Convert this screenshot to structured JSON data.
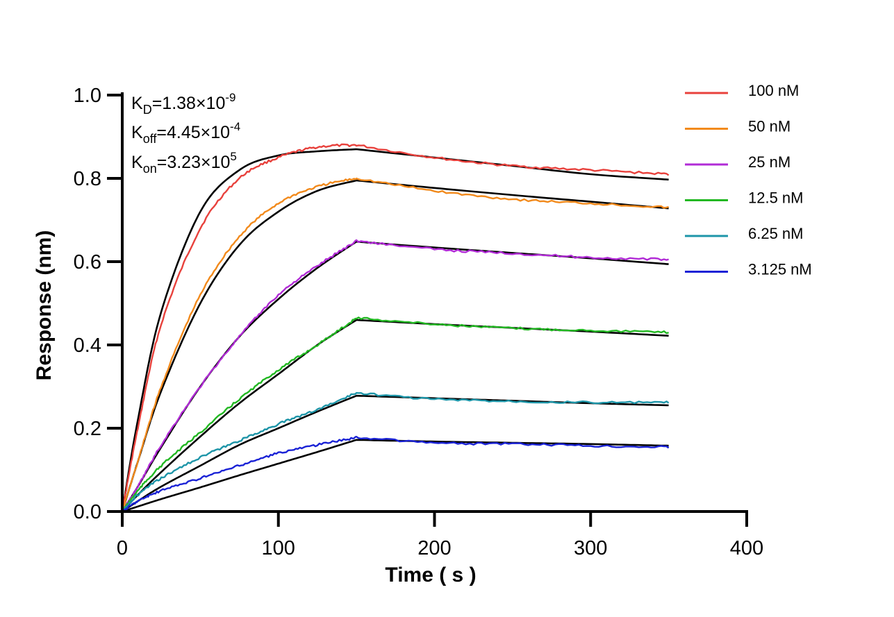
{
  "chart_data": {
    "type": "line",
    "title": "",
    "xlabel": "Time ( s )",
    "ylabel": "Response (nm)",
    "xlim": [
      0,
      400
    ],
    "ylim": [
      0,
      1.0
    ],
    "x_ticks": [
      "0",
      "100",
      "200",
      "300",
      "400"
    ],
    "y_ticks": [
      "0.0",
      "0.2",
      "0.4",
      "0.6",
      "0.8",
      "1.0"
    ],
    "grid": false,
    "legend_position": "top-right",
    "annotations": {
      "kd": {
        "main": "K",
        "sub": "D",
        "rest": "=1.38×10",
        "sup": "-9"
      },
      "koff": {
        "main": "K",
        "sub": "off",
        "rest": "=4.45×10",
        "sup": "-4"
      },
      "kon": {
        "main": "K",
        "sub": "on",
        "rest": "=3.23×10",
        "sup": "5"
      }
    },
    "association_end": 150,
    "experiment_end": 350,
    "fit_color": "#000000",
    "series": [
      {
        "name": "100 nM",
        "color": "#e8413c",
        "x": [
          0,
          10,
          25,
          50,
          75,
          100,
          125,
          150,
          200,
          250,
          300,
          350
        ],
        "measured": [
          0,
          0.2,
          0.45,
          0.68,
          0.8,
          0.85,
          0.875,
          0.88,
          0.85,
          0.83,
          0.82,
          0.81
        ],
        "fit": [
          0,
          0.22,
          0.48,
          0.72,
          0.82,
          0.855,
          0.865,
          0.87,
          0.85,
          0.83,
          0.81,
          0.797
        ]
      },
      {
        "name": "50 nM",
        "color": "#f28a1c",
        "x": [
          0,
          10,
          25,
          50,
          75,
          100,
          125,
          150,
          200,
          250,
          300,
          350
        ],
        "measured": [
          0,
          0.12,
          0.3,
          0.52,
          0.66,
          0.74,
          0.78,
          0.8,
          0.77,
          0.75,
          0.74,
          0.73
        ],
        "fit": [
          0,
          0.12,
          0.29,
          0.5,
          0.64,
          0.72,
          0.77,
          0.795,
          0.777,
          0.76,
          0.744,
          0.728
        ]
      },
      {
        "name": "25 nM",
        "color": "#b12bd6",
        "x": [
          0,
          10,
          25,
          50,
          75,
          100,
          125,
          150,
          200,
          250,
          300,
          350
        ],
        "measured": [
          0,
          0.06,
          0.16,
          0.3,
          0.42,
          0.52,
          0.59,
          0.65,
          0.63,
          0.62,
          0.61,
          0.605
        ],
        "fit": [
          0,
          0.06,
          0.155,
          0.3,
          0.42,
          0.51,
          0.585,
          0.648,
          0.634,
          0.621,
          0.608,
          0.594
        ]
      },
      {
        "name": "12.5 nM",
        "color": "#22b822",
        "x": [
          0,
          10,
          25,
          50,
          75,
          100,
          125,
          150,
          200,
          250,
          300,
          350
        ],
        "measured": [
          0,
          0.05,
          0.11,
          0.19,
          0.27,
          0.34,
          0.4,
          0.465,
          0.45,
          0.44,
          0.435,
          0.43
        ],
        "fit": [
          0,
          0.04,
          0.095,
          0.18,
          0.26,
          0.33,
          0.4,
          0.46,
          0.45,
          0.441,
          0.432,
          0.422
        ]
      },
      {
        "name": "6.25 nM",
        "color": "#1d95a8",
        "x": [
          0,
          10,
          25,
          50,
          75,
          100,
          125,
          150,
          200,
          250,
          300,
          350
        ],
        "measured": [
          0,
          0.04,
          0.08,
          0.13,
          0.17,
          0.21,
          0.245,
          0.285,
          0.27,
          0.265,
          0.262,
          0.262
        ],
        "fit": [
          0,
          0.025,
          0.06,
          0.11,
          0.16,
          0.2,
          0.24,
          0.278,
          0.272,
          0.266,
          0.26,
          0.255
        ]
      },
      {
        "name": "3.125 nM",
        "color": "#1a22d6",
        "x": [
          0,
          10,
          25,
          50,
          75,
          100,
          125,
          150,
          200,
          250,
          300,
          350
        ],
        "measured": [
          0,
          0.025,
          0.05,
          0.08,
          0.11,
          0.14,
          0.16,
          0.178,
          0.165,
          0.162,
          0.158,
          0.155
        ],
        "fit": [
          0,
          0.012,
          0.03,
          0.058,
          0.087,
          0.115,
          0.143,
          0.172,
          0.168,
          0.165,
          0.162,
          0.158
        ]
      }
    ]
  }
}
